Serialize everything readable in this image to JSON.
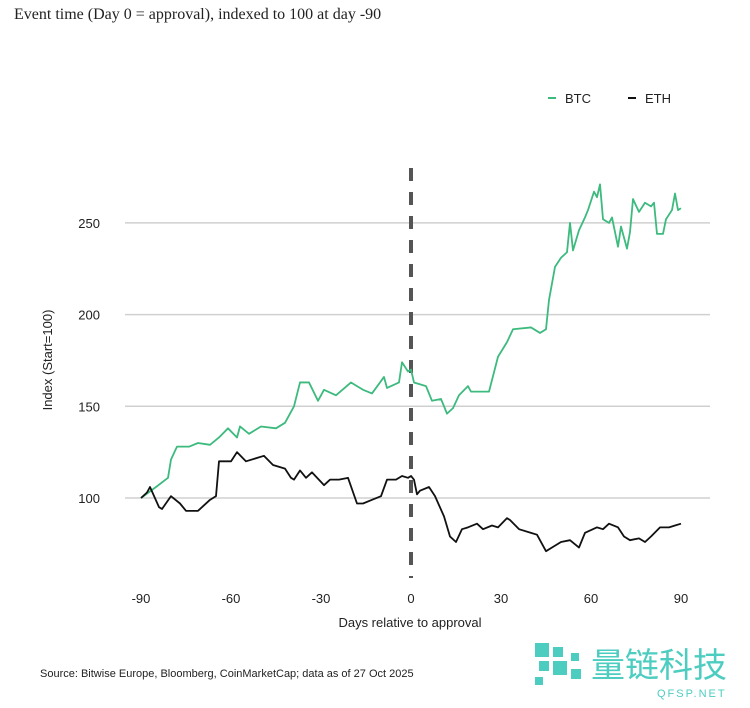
{
  "subtitle": "Event time (Day 0 = approval), indexed to 100 at day -90",
  "source": "Source: Bitwise Europe, Bloomberg, CoinMarketCap; data as of 27 Oct 2025",
  "watermark": {
    "text": "量链科技",
    "subtext": "QFSP.NET"
  },
  "colors": {
    "BTC": "#3dba7e",
    "ETH": "#111111",
    "grid": "#d0d0d0",
    "event_line": "#555555"
  },
  "chart_data": {
    "type": "line",
    "xlabel": "Days relative to approval",
    "ylabel": "Index (Start=100)",
    "xlim": [
      -90,
      90
    ],
    "ylim": [
      60,
      280
    ],
    "xticks": [
      -90,
      -60,
      -30,
      0,
      30,
      60,
      90
    ],
    "yticks": [
      100,
      150,
      200,
      250
    ],
    "grid": "horizontal",
    "legend": "top-right",
    "event_line_x": 0,
    "series": [
      {
        "name": "BTC",
        "points": [
          [
            -90,
            100
          ],
          [
            -85,
            106
          ],
          [
            -81,
            111
          ],
          [
            -80,
            121
          ],
          [
            -78,
            128
          ],
          [
            -74,
            128
          ],
          [
            -71,
            130
          ],
          [
            -67,
            129
          ],
          [
            -64,
            133
          ],
          [
            -61,
            138
          ],
          [
            -58,
            133
          ],
          [
            -57,
            139
          ],
          [
            -54,
            135
          ],
          [
            -50,
            139
          ],
          [
            -45,
            138
          ],
          [
            -42,
            141
          ],
          [
            -39,
            150
          ],
          [
            -37,
            163
          ],
          [
            -34,
            163
          ],
          [
            -31,
            153
          ],
          [
            -29,
            159
          ],
          [
            -25,
            156
          ],
          [
            -20,
            163
          ],
          [
            -16,
            159
          ],
          [
            -13,
            157
          ],
          [
            -9,
            166
          ],
          [
            -8,
            160
          ],
          [
            -4,
            163
          ],
          [
            -3,
            174
          ],
          [
            -1,
            169
          ],
          [
            0,
            170
          ],
          [
            1,
            163
          ],
          [
            5,
            161
          ],
          [
            7,
            153
          ],
          [
            10,
            154
          ],
          [
            12,
            146
          ],
          [
            14,
            149
          ],
          [
            16,
            156
          ],
          [
            19,
            161
          ],
          [
            20,
            158
          ],
          [
            26,
            158
          ],
          [
            29,
            177
          ],
          [
            32,
            185
          ],
          [
            34,
            192
          ],
          [
            40,
            193
          ],
          [
            43,
            190
          ],
          [
            45,
            192
          ],
          [
            46,
            208
          ],
          [
            48,
            226
          ],
          [
            50,
            231
          ],
          [
            52,
            234
          ],
          [
            53,
            250
          ],
          [
            54,
            235
          ],
          [
            56,
            246
          ],
          [
            58,
            253
          ],
          [
            59,
            257
          ],
          [
            61,
            267
          ],
          [
            62,
            264
          ],
          [
            63,
            271
          ],
          [
            64,
            252
          ],
          [
            66,
            250
          ],
          [
            67,
            253
          ],
          [
            69,
            237
          ],
          [
            70,
            248
          ],
          [
            72,
            236
          ],
          [
            73,
            245
          ],
          [
            74,
            263
          ],
          [
            76,
            256
          ],
          [
            78,
            261
          ],
          [
            80,
            259
          ],
          [
            81,
            261
          ],
          [
            82,
            244
          ],
          [
            84,
            244
          ],
          [
            85,
            252
          ],
          [
            87,
            257
          ],
          [
            88,
            266
          ],
          [
            89,
            257
          ],
          [
            90,
            258
          ]
        ]
      },
      {
        "name": "ETH",
        "points": [
          [
            -90,
            100
          ],
          [
            -88,
            103
          ],
          [
            -87,
            106
          ],
          [
            -84,
            95
          ],
          [
            -83,
            94
          ],
          [
            -80,
            101
          ],
          [
            -77,
            97
          ],
          [
            -75,
            93
          ],
          [
            -71,
            93
          ],
          [
            -69,
            96
          ],
          [
            -67,
            99
          ],
          [
            -65,
            101
          ],
          [
            -64,
            120
          ],
          [
            -60,
            120
          ],
          [
            -58,
            125
          ],
          [
            -55,
            120
          ],
          [
            -51,
            122
          ],
          [
            -49,
            123
          ],
          [
            -46,
            118
          ],
          [
            -42,
            116
          ],
          [
            -40,
            111
          ],
          [
            -39,
            110
          ],
          [
            -37,
            115
          ],
          [
            -35,
            111
          ],
          [
            -33,
            114
          ],
          [
            -29,
            107
          ],
          [
            -27,
            110
          ],
          [
            -24,
            110
          ],
          [
            -21,
            111
          ],
          [
            -18,
            97
          ],
          [
            -16,
            97
          ],
          [
            -13,
            99
          ],
          [
            -10,
            101
          ],
          [
            -8,
            110
          ],
          [
            -5,
            110
          ],
          [
            -3,
            112
          ],
          [
            -1,
            111
          ],
          [
            0,
            112
          ],
          [
            1,
            110
          ],
          [
            2,
            102
          ],
          [
            3,
            104
          ],
          [
            6,
            106
          ],
          [
            8,
            101
          ],
          [
            11,
            90
          ],
          [
            13,
            79
          ],
          [
            15,
            76
          ],
          [
            17,
            83
          ],
          [
            19,
            84
          ],
          [
            22,
            86
          ],
          [
            24,
            83
          ],
          [
            27,
            85
          ],
          [
            29,
            84
          ],
          [
            32,
            89
          ],
          [
            33,
            88
          ],
          [
            36,
            83
          ],
          [
            40,
            81
          ],
          [
            42,
            80
          ],
          [
            45,
            71
          ],
          [
            47,
            73
          ],
          [
            50,
            76
          ],
          [
            53,
            77
          ],
          [
            56,
            73
          ],
          [
            58,
            81
          ],
          [
            62,
            84
          ],
          [
            64,
            83
          ],
          [
            66,
            86
          ],
          [
            69,
            84
          ],
          [
            71,
            79
          ],
          [
            73,
            77
          ],
          [
            76,
            78
          ],
          [
            78,
            76
          ],
          [
            80,
            79
          ],
          [
            83,
            84
          ],
          [
            86,
            84
          ],
          [
            88,
            85
          ],
          [
            90,
            86
          ]
        ]
      }
    ]
  }
}
